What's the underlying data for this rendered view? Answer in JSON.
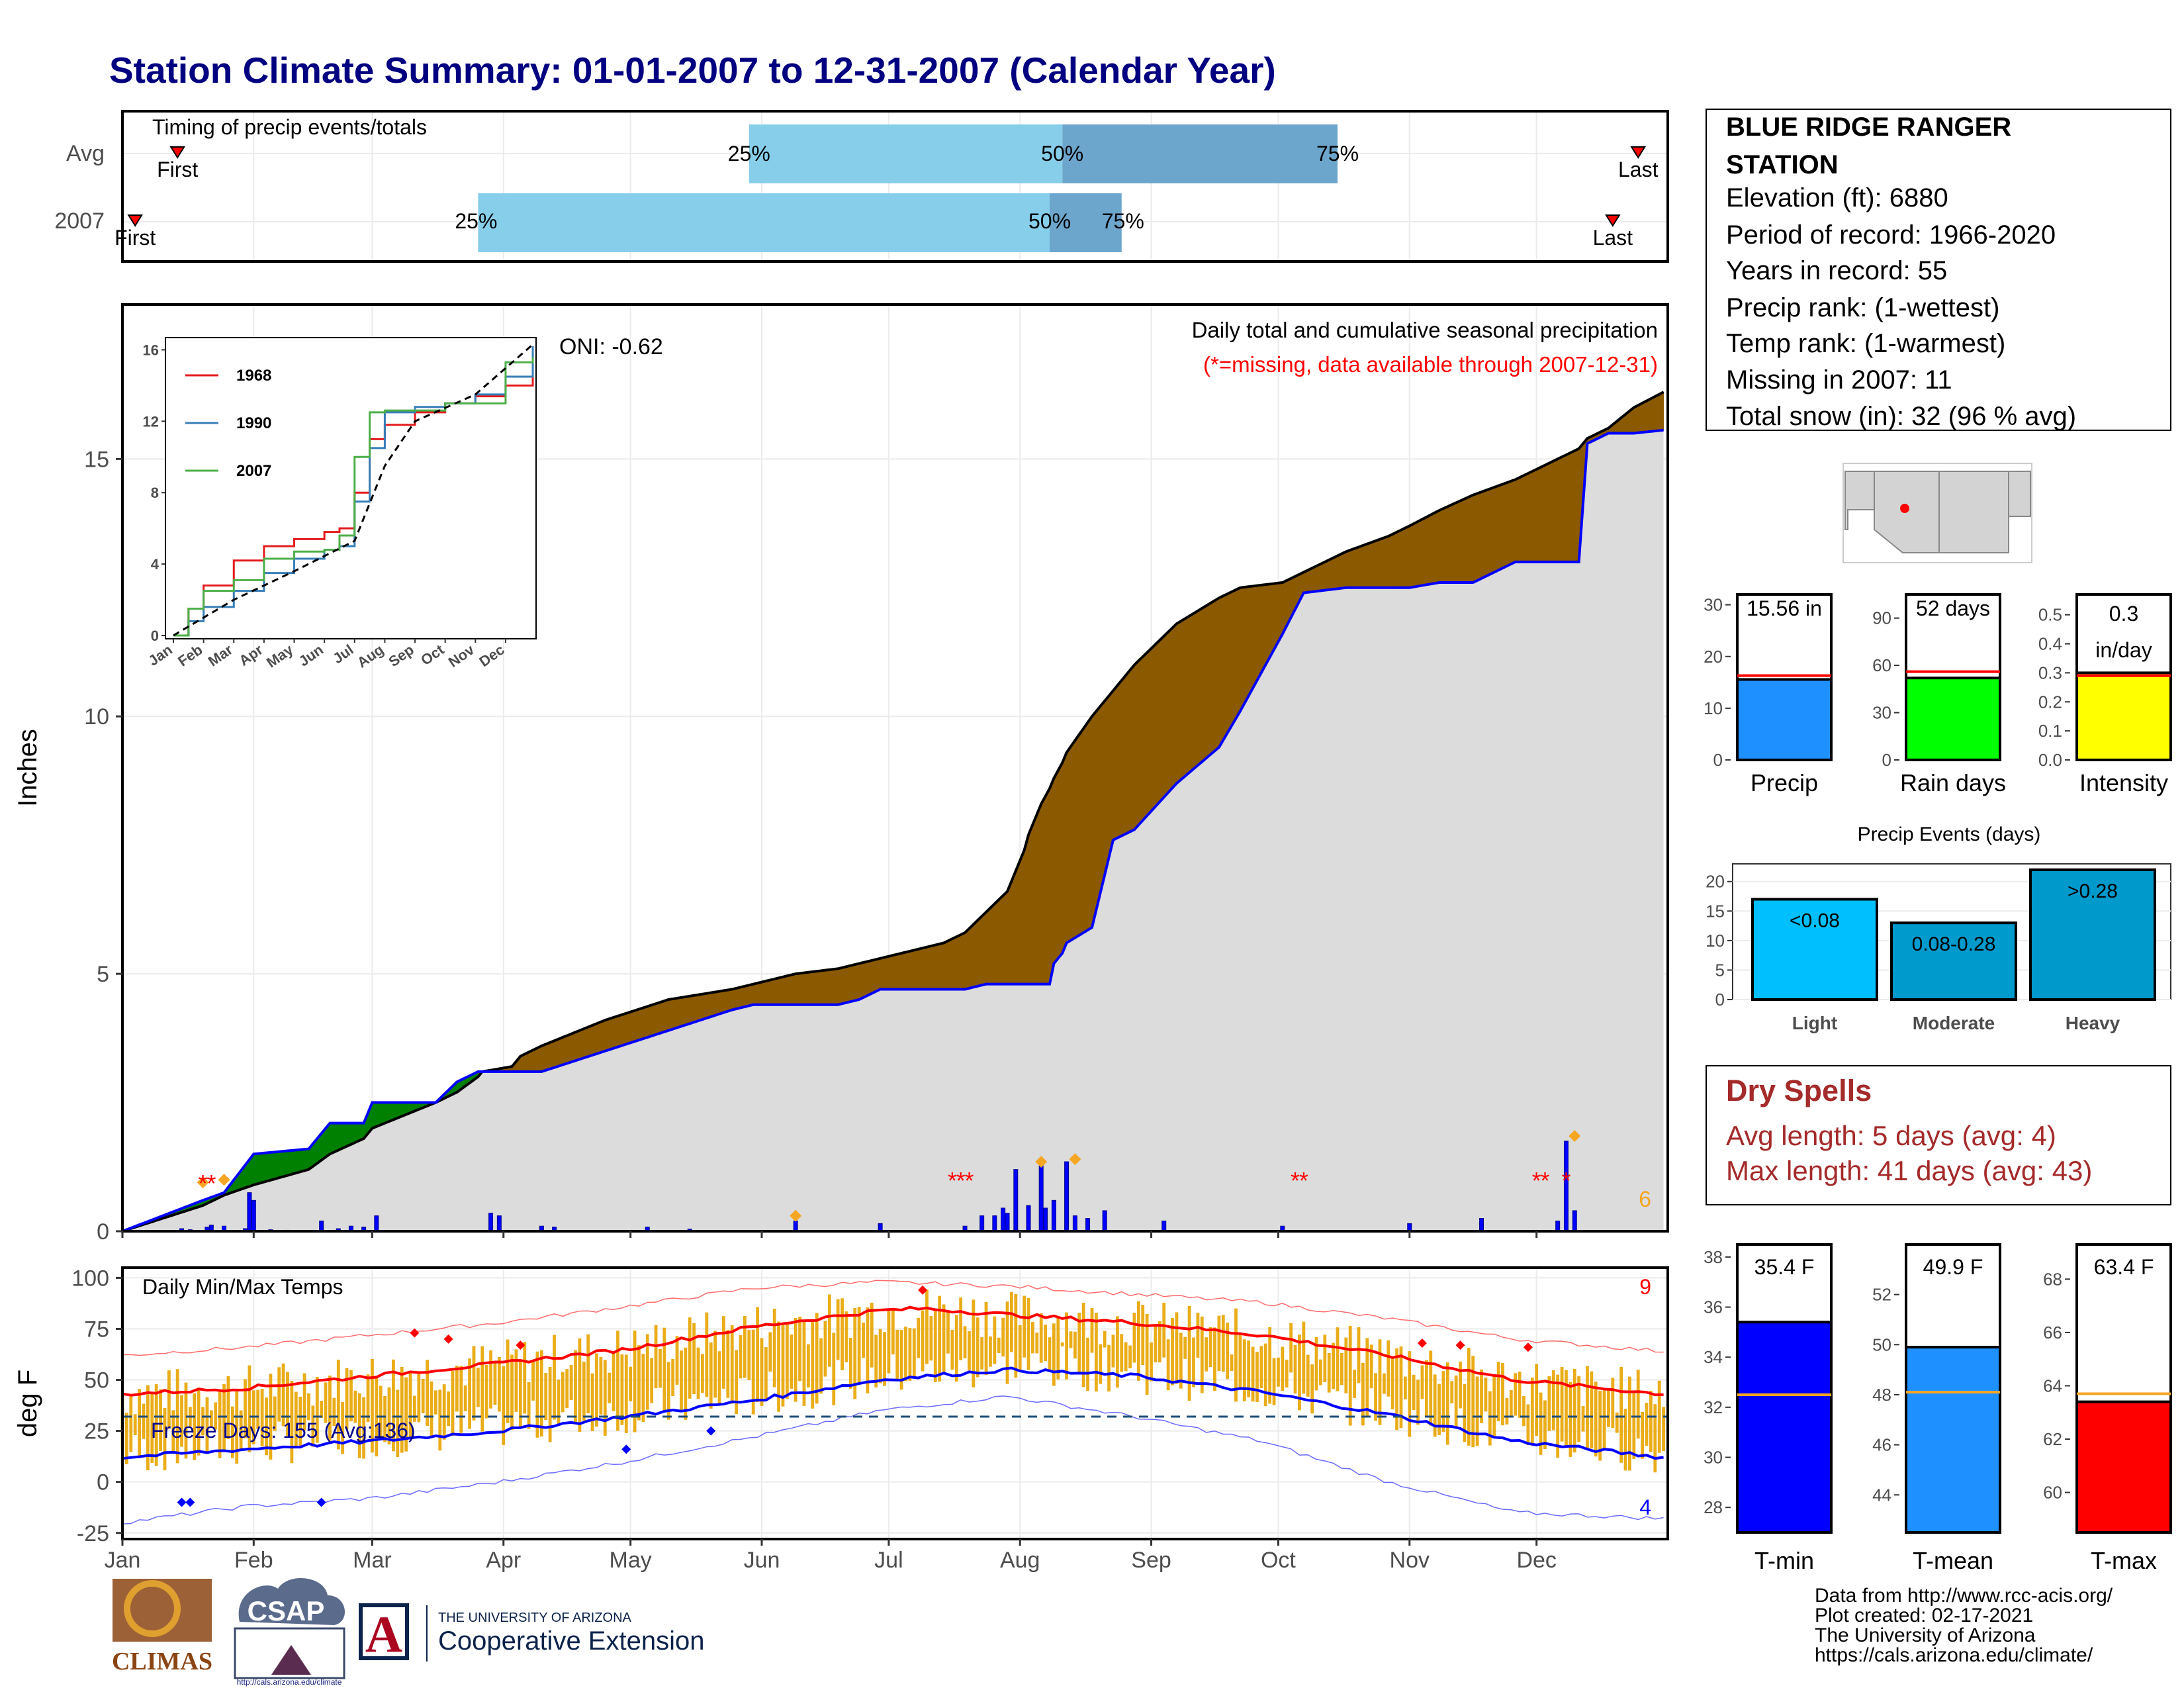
{
  "title": "Station Climate Summary: 01-01-2007 to 12-31-2007 (Calendar Year)",
  "colors": {
    "title": "#000080",
    "q_light": "#87ceeb",
    "q_dark": "#6ca6cd",
    "green": "#008000",
    "brown": "#8b5a00",
    "grey_fill": "#dcdcdc",
    "blue": "#0000ff",
    "red": "#ff0000",
    "orange": "#f5a623",
    "temp_bar": "#e8a400",
    "precip_bar": "#1e90ff",
    "rain_bar": "#00ff00",
    "intensity_bar": "#ffff00",
    "dry_spell": "#a52a2a"
  },
  "timing_panel": {
    "label": "Timing of precip events/totals",
    "rows": [
      "Avg",
      "2007"
    ],
    "first_label": "First",
    "last_label": "Last",
    "quartile_labels": [
      "25%",
      "50%",
      "75%"
    ]
  },
  "months": [
    "Jan",
    "Feb",
    "Mar",
    "Apr",
    "May",
    "Jun",
    "Jul",
    "Aug",
    "Sep",
    "Oct",
    "Nov",
    "Dec"
  ],
  "precip_panel": {
    "ylabel": "Inches",
    "yticks": [
      "0",
      "5",
      "10",
      "15"
    ],
    "title_text": "Daily total and cumulative seasonal precipitation",
    "missing_text": "(*=missing, data available through 2007-12-31)",
    "oni_text": "ONI: -0.62",
    "count_label": "6",
    "inset": {
      "yticks": [
        "0",
        "4",
        "8",
        "12",
        "16"
      ],
      "xticks": [
        "Jan",
        "Feb",
        "Mar",
        "Apr",
        "May",
        "Jun",
        "Jul",
        "Aug",
        "Sep",
        "Oct",
        "Nov",
        "Dec"
      ],
      "legend": [
        "1968",
        "1990",
        "2007"
      ]
    }
  },
  "temp_panel": {
    "ylabel": "deg F",
    "title_text": "Daily Min/Max Temps",
    "freeze_text": "Freeze Days: 155 (Avg:136)",
    "yticks": [
      "-25",
      "0",
      "25",
      "50",
      "75",
      "100"
    ],
    "count_high": "9",
    "count_low": "4"
  },
  "station_info": {
    "name_line1": "BLUE RIDGE RANGER",
    "name_line2": "STATION",
    "lines": [
      "Elevation (ft): 6880",
      "Period of record: 1966-2020",
      "Years in record: 55",
      "Precip rank:  (1-wettest)",
      "Temp rank:  (1-warmest)",
      "Missing in 2007: 11",
      "Total snow (in): 32 (96 % avg)"
    ]
  },
  "summary_bars": [
    {
      "label": "Precip",
      "value_text": "15.56 in",
      "value": 15.56,
      "avg": 16.3,
      "ymax": 32,
      "yticks": [
        "0",
        "10",
        "20",
        "30"
      ]
    },
    {
      "label": "Rain days",
      "value_text": "52 days",
      "value": 52,
      "avg": 56,
      "ymax": 105,
      "yticks": [
        "0",
        "30",
        "60",
        "90"
      ]
    },
    {
      "label": "Intensity",
      "value_text_1": "0.3",
      "value_text_2": "in/day",
      "value": 0.3,
      "avg": 0.29,
      "ymax": 0.57,
      "yticks": [
        "0.0",
        "0.1",
        "0.2",
        "0.3",
        "0.4",
        "0.5"
      ]
    }
  ],
  "precip_events": {
    "title": "Precip Events (days)",
    "yticks": [
      "0",
      "5",
      "10",
      "15",
      "20"
    ],
    "bars": [
      {
        "label": "Light",
        "text": "<0.08",
        "value": 17
      },
      {
        "label": "Moderate",
        "text": "0.08-0.28",
        "value": 13
      },
      {
        "label": "Heavy",
        "text": ">0.28",
        "value": 22
      }
    ]
  },
  "dry_spells": {
    "title": "Dry Spells",
    "avg_line": "Avg length: 5 days (avg: 4)",
    "max_line": "Max length: 41 days (avg: 43)"
  },
  "temp_bars": [
    {
      "label": "T-min",
      "value_text": "35.4 F",
      "value": 35.4,
      "avg": 32.5,
      "ymin": 27,
      "ymax": 38.5,
      "ticks": [
        28,
        30,
        32,
        34,
        36,
        38
      ]
    },
    {
      "label": "T-mean",
      "value_text": "49.9 F",
      "value": 49.9,
      "avg": 48.1,
      "ymin": 42.5,
      "ymax": 54,
      "ticks": [
        44,
        46,
        48,
        50,
        52
      ]
    },
    {
      "label": "T-max",
      "value_text": "63.4 F",
      "value": 63.4,
      "avg": 63.7,
      "ymin": 58.5,
      "ymax": 69.3,
      "ticks": [
        60,
        62,
        64,
        66,
        68
      ]
    }
  ],
  "footer": {
    "lines": [
      "Data from http://www.rcc-acis.org/",
      "Plot created: 02-17-2021",
      "The University of Arizona",
      "https://cals.arizona.edu/climate/"
    ],
    "logo_climas": "CLIMAS",
    "logo_csap": "CSAP",
    "logo_csap_url": "http://cals.arizona.edu/climate",
    "logo_ua_top": "THE UNIVERSITY OF ARIZONA",
    "logo_ua_bottom": "Cooperative Extension",
    "logo_ua_letter": "A"
  },
  "chart_data": [
    {
      "type": "bar",
      "name": "timing",
      "rows": [
        {
          "row": "Avg",
          "first_doy": 14,
          "q25_doy": 149,
          "q50_doy": 223,
          "q75_doy": 288,
          "last_doy": 359
        },
        {
          "row": "2007",
          "first_doy": 4,
          "q25_doy": 85,
          "q50_doy": 220,
          "q75_doy": 237,
          "last_doy": 353
        }
      ]
    },
    {
      "type": "area",
      "name": "cumulative precipitation",
      "xlabel": "",
      "ylabel": "Inches",
      "ylim": [
        0,
        18
      ],
      "xlim": [
        "Jan",
        "Dec"
      ],
      "x_doy": [
        1,
        20,
        25,
        32,
        45,
        50,
        58,
        60,
        75,
        80,
        85,
        86,
        93,
        95,
        100,
        115,
        130,
        145,
        150,
        160,
        170,
        175,
        180,
        185,
        195,
        200,
        205,
        210,
        212,
        214,
        215,
        216,
        218,
        220,
        221,
        223,
        224,
        230,
        235,
        240,
        250,
        260,
        265,
        275,
        280,
        290,
        300,
        305,
        312,
        320,
        330,
        335,
        340,
        345,
        347,
        352,
        358,
        365
      ],
      "y_2007": [
        0.0,
        0.6,
        0.75,
        1.5,
        1.6,
        2.1,
        2.1,
        2.5,
        2.5,
        2.9,
        3.1,
        3.1,
        3.1,
        3.1,
        3.1,
        3.5,
        3.9,
        4.3,
        4.4,
        4.4,
        4.4,
        4.5,
        4.7,
        4.7,
        4.7,
        4.7,
        4.8,
        4.8,
        4.8,
        4.8,
        4.8,
        4.8,
        4.8,
        4.8,
        5.2,
        5.4,
        5.6,
        5.9,
        7.6,
        7.8,
        8.7,
        9.4,
        10.1,
        11.6,
        12.4,
        12.5,
        12.5,
        12.5,
        12.6,
        12.6,
        13.0,
        13.0,
        13.0,
        13.0,
        15.3,
        15.5,
        15.5,
        15.56
      ],
      "y_avg": [
        0.0,
        0.5,
        0.7,
        0.9,
        1.2,
        1.5,
        1.8,
        2.0,
        2.5,
        2.7,
        3.0,
        3.1,
        3.2,
        3.4,
        3.6,
        4.1,
        4.5,
        4.7,
        4.8,
        5.0,
        5.1,
        5.2,
        5.3,
        5.4,
        5.6,
        5.8,
        6.2,
        6.6,
        7.0,
        7.4,
        7.7,
        7.9,
        8.3,
        8.6,
        8.8,
        9.1,
        9.3,
        10.0,
        10.5,
        11.0,
        11.8,
        12.3,
        12.5,
        12.6,
        12.8,
        13.2,
        13.5,
        13.7,
        14.0,
        14.3,
        14.6,
        14.8,
        15.0,
        15.2,
        15.4,
        15.6,
        16.0,
        16.3
      ]
    },
    {
      "type": "bar",
      "name": "daily precipitation",
      "days": [
        15,
        17,
        21,
        22,
        25,
        30,
        31,
        32,
        36,
        40,
        48,
        52,
        55,
        58,
        61,
        88,
        90,
        100,
        103,
        125,
        135,
        160,
        180,
        200,
        204,
        207,
        209,
        210,
        212,
        215,
        218,
        219,
        221,
        224,
        226,
        229,
        233,
        247,
        275,
        305,
        322,
        340,
        342,
        344
      ],
      "values": [
        0.05,
        0.03,
        0.08,
        0.12,
        0.1,
        0.05,
        0.75,
        0.6,
        0.03,
        0.02,
        0.2,
        0.05,
        0.1,
        0.08,
        0.3,
        0.35,
        0.3,
        0.1,
        0.08,
        0.08,
        0.04,
        0.2,
        0.15,
        0.1,
        0.3,
        0.3,
        0.45,
        0.35,
        1.2,
        0.5,
        1.3,
        0.45,
        0.6,
        1.35,
        0.3,
        0.25,
        0.4,
        0.2,
        0.1,
        0.15,
        0.25,
        0.2,
        1.75,
        0.4
      ]
    },
    {
      "type": "line",
      "name": "inset cumulative comparison",
      "ylim": [
        0,
        16.5
      ],
      "series": [
        {
          "name": "1968",
          "x_month": [
            0,
            0.5,
            1,
            2,
            3,
            4,
            5,
            5.5,
            6,
            6.5,
            7,
            8,
            9,
            10,
            11,
            11.9
          ],
          "y": [
            0,
            1.5,
            2.8,
            4.2,
            5.0,
            5.4,
            5.8,
            6.0,
            8.0,
            11.0,
            11.8,
            12.5,
            13.0,
            13.4,
            14.0,
            15.0
          ]
        },
        {
          "name": "1990",
          "x_month": [
            0,
            0.5,
            1,
            2,
            3,
            4,
            5,
            5.5,
            6,
            6.5,
            7,
            8,
            9,
            10,
            11,
            11.9
          ],
          "y": [
            0,
            0.8,
            1.6,
            2.5,
            3.5,
            4.3,
            4.8,
            5.0,
            7.5,
            10.5,
            12.5,
            12.8,
            13.0,
            13.5,
            14.5,
            16.2
          ]
        },
        {
          "name": "2007",
          "x_month": [
            0,
            0.5,
            1,
            2,
            3,
            4,
            5,
            5.5,
            6,
            6.5,
            7,
            8,
            9,
            10,
            11,
            11.9
          ],
          "y": [
            0,
            1.5,
            2.5,
            3.1,
            4.3,
            4.7,
            4.8,
            5.6,
            10.0,
            12.5,
            12.6,
            12.6,
            13.0,
            13.0,
            15.3,
            15.56
          ]
        }
      ],
      "avg_dashed": {
        "x_month": [
          0,
          2,
          4,
          6,
          7,
          8,
          10,
          11.9
        ],
        "y": [
          0,
          2.0,
          3.6,
          5.3,
          9.5,
          12.0,
          13.5,
          16.3
        ]
      }
    },
    {
      "type": "line",
      "name": "daily temperatures",
      "ylabel": "deg F",
      "ylim": [
        -28,
        105
      ],
      "normal_max": {
        "doy": [
          1,
          30,
          60,
          90,
          120,
          150,
          180,
          190,
          210,
          240,
          270,
          300,
          330,
          365
        ],
        "y": [
          43,
          46,
          52,
          58,
          65,
          76,
          84,
          85,
          82,
          78,
          72,
          62,
          50,
          43
        ]
      },
      "normal_min": {
        "doy": [
          1,
          30,
          60,
          90,
          120,
          150,
          180,
          210,
          240,
          270,
          300,
          330,
          365
        ],
        "y": [
          12,
          16,
          20,
          25,
          32,
          40,
          50,
          55,
          52,
          44,
          33,
          20,
          12
        ]
      },
      "record_max": {
        "doy": [
          1,
          30,
          60,
          90,
          120,
          150,
          180,
          210,
          240,
          270,
          300,
          330,
          365
        ],
        "y": [
          62,
          66,
          72,
          78,
          86,
          95,
          98,
          96,
          92,
          88,
          80,
          70,
          64
        ]
      },
      "record_min": {
        "doy": [
          1,
          30,
          60,
          90,
          120,
          150,
          180,
          210,
          240,
          270,
          300,
          330,
          365
        ],
        "y": [
          -20,
          -12,
          -8,
          0,
          10,
          22,
          35,
          42,
          32,
          20,
          0,
          -15,
          -18
        ]
      },
      "freeze_line": 32
    },
    {
      "type": "bar",
      "name": "precip events",
      "categories": [
        "Light",
        "Moderate",
        "Heavy"
      ],
      "values": [
        17,
        13,
        22
      ]
    },
    {
      "type": "bar",
      "name": "temperature summary",
      "categories": [
        "T-min",
        "T-mean",
        "T-max"
      ],
      "values": [
        35.4,
        49.9,
        63.4
      ],
      "averages": [
        32.5,
        48.1,
        63.7
      ]
    }
  ]
}
